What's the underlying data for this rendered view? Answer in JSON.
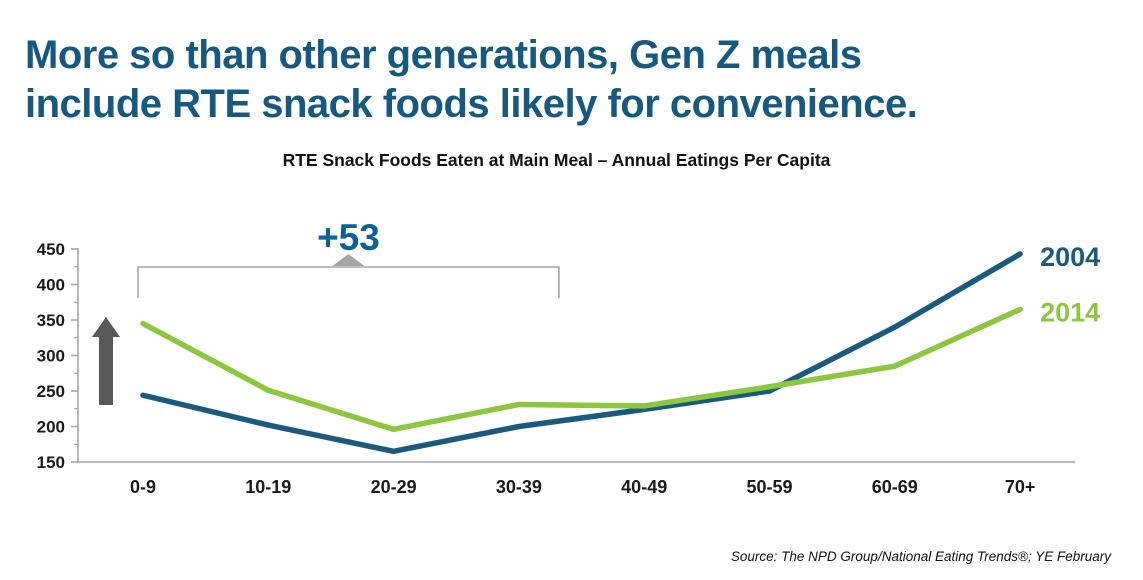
{
  "slide": {
    "title_line1": "More so than other generations, Gen Z meals",
    "title_line2": "include RTE snack foods likely for convenience.",
    "title_color": "#17587F",
    "source": "Source: The NPD Group/National Eating Trends®; YE February"
  },
  "chart_data": {
    "type": "line",
    "title": "RTE Snack Foods Eaten at Main Meal – Annual Eatings Per Capita",
    "categories": [
      "0-9",
      "10-19",
      "20-29",
      "30-39",
      "40-49",
      "50-59",
      "60-69",
      "70+"
    ],
    "series": [
      {
        "name": "2004",
        "color": "#1A5A7C",
        "values": [
          244,
          202,
          165,
          200,
          224,
          250,
          340,
          443
        ]
      },
      {
        "name": "2014",
        "color": "#8DC63F",
        "values": [
          345,
          251,
          196,
          231,
          229,
          256,
          285,
          365
        ]
      }
    ],
    "xlabel": "",
    "ylabel": "",
    "ylim": [
      150,
      450
    ],
    "ytick_step": 50,
    "grid": false,
    "legend_position": "right-line-end",
    "axis_color": "#A6A6A6",
    "tick_label_color": "#1a1a1a",
    "annotations": {
      "bracket_label": "+53",
      "bracket_label_color": "#0E6193",
      "bracket_from_category": "0-9",
      "bracket_to_category": "30-39",
      "bracket_color": "#A6A6A6",
      "up_arrow_color": "#595959"
    }
  }
}
